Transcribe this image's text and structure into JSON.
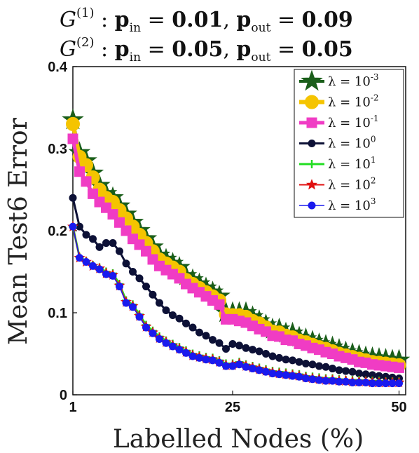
{
  "chart_data": {
    "type": "line",
    "title_lines": [
      "G(1) : pin = 0.01,  pout = 0.09",
      "G(2) : pin = 0.05,  pout = 0.05"
    ],
    "xlabel": "Labelled Nodes (%)",
    "ylabel": "Mean Test6 Error",
    "xlim": [
      1,
      51
    ],
    "ylim": [
      0,
      0.4
    ],
    "xticks": [
      "1",
      "25",
      "50"
    ],
    "yticks": [
      "0",
      "0.1",
      "0.2",
      "0.3",
      "0.4"
    ],
    "grid": false,
    "legend_position": "top-right",
    "x": [
      1,
      2,
      3,
      4,
      5,
      6,
      7,
      8,
      9,
      10,
      11,
      12,
      13,
      14,
      15,
      16,
      17,
      18,
      19,
      20,
      21,
      22,
      23,
      24,
      25,
      26,
      27,
      28,
      29,
      30,
      31,
      32,
      33,
      34,
      35,
      36,
      37,
      38,
      39,
      40,
      41,
      42,
      43,
      44,
      45,
      46,
      47,
      48,
      49,
      50
    ],
    "series": [
      {
        "name": "λ = 10^-3",
        "color": "#1a5e1a",
        "marker": "star-large",
        "values": [
          0.335,
          0.295,
          0.285,
          0.27,
          0.255,
          0.245,
          0.24,
          0.23,
          0.22,
          0.21,
          0.2,
          0.19,
          0.18,
          0.17,
          0.165,
          0.16,
          0.155,
          0.145,
          0.14,
          0.135,
          0.13,
          0.125,
          0.12,
          0.1,
          0.1,
          0.1,
          0.1,
          0.095,
          0.09,
          0.085,
          0.08,
          0.08,
          0.075,
          0.075,
          0.07,
          0.068,
          0.065,
          0.062,
          0.06,
          0.058,
          0.055,
          0.052,
          0.05,
          0.048,
          0.046,
          0.045,
          0.044,
          0.043,
          0.042,
          0.042
        ]
      },
      {
        "name": "λ = 10^-2",
        "color": "#f5c400",
        "marker": "circle-large",
        "values": [
          0.33,
          0.29,
          0.28,
          0.265,
          0.25,
          0.24,
          0.235,
          0.225,
          0.215,
          0.205,
          0.195,
          0.185,
          0.175,
          0.165,
          0.16,
          0.155,
          0.15,
          0.14,
          0.135,
          0.13,
          0.125,
          0.12,
          0.115,
          0.098,
          0.097,
          0.097,
          0.095,
          0.09,
          0.087,
          0.082,
          0.077,
          0.076,
          0.072,
          0.07,
          0.066,
          0.064,
          0.061,
          0.058,
          0.056,
          0.053,
          0.05,
          0.048,
          0.046,
          0.044,
          0.042,
          0.04,
          0.039,
          0.038,
          0.037,
          0.036
        ]
      },
      {
        "name": "λ = 10^-1",
        "color": "#f03cc4",
        "marker": "square",
        "values": [
          0.312,
          0.272,
          0.26,
          0.245,
          0.235,
          0.228,
          0.22,
          0.21,
          0.2,
          0.19,
          0.183,
          0.175,
          0.165,
          0.157,
          0.152,
          0.147,
          0.142,
          0.135,
          0.13,
          0.125,
          0.12,
          0.115,
          0.11,
          0.092,
          0.092,
          0.09,
          0.088,
          0.084,
          0.08,
          0.077,
          0.072,
          0.071,
          0.067,
          0.066,
          0.062,
          0.06,
          0.057,
          0.055,
          0.052,
          0.05,
          0.047,
          0.045,
          0.043,
          0.04,
          0.039,
          0.037,
          0.036,
          0.035,
          0.034,
          0.033
        ]
      },
      {
        "name": "λ = 10^0",
        "color": "#0d1136",
        "marker": "circle",
        "values": [
          0.24,
          0.205,
          0.195,
          0.19,
          0.18,
          0.185,
          0.185,
          0.175,
          0.16,
          0.15,
          0.142,
          0.132,
          0.122,
          0.112,
          0.103,
          0.097,
          0.093,
          0.087,
          0.082,
          0.076,
          0.072,
          0.067,
          0.063,
          0.056,
          0.062,
          0.06,
          0.057,
          0.055,
          0.053,
          0.05,
          0.047,
          0.045,
          0.043,
          0.042,
          0.04,
          0.038,
          0.037,
          0.035,
          0.034,
          0.032,
          0.03,
          0.029,
          0.028,
          0.026,
          0.025,
          0.024,
          0.023,
          0.022,
          0.021,
          0.02
        ]
      },
      {
        "name": "λ = 10^1",
        "color": "#22dd22",
        "marker": "plus",
        "values": [
          0.205,
          0.168,
          0.163,
          0.158,
          0.155,
          0.15,
          0.148,
          0.135,
          0.115,
          0.11,
          0.098,
          0.085,
          0.078,
          0.071,
          0.066,
          0.062,
          0.058,
          0.054,
          0.05,
          0.048,
          0.046,
          0.045,
          0.042,
          0.038,
          0.038,
          0.04,
          0.037,
          0.035,
          0.033,
          0.031,
          0.029,
          0.028,
          0.027,
          0.026,
          0.025,
          0.023,
          0.022,
          0.021,
          0.02,
          0.02,
          0.019,
          0.018,
          0.018,
          0.018,
          0.017,
          0.017,
          0.017,
          0.016,
          0.016,
          0.016
        ]
      },
      {
        "name": "λ = 10^2",
        "color": "#e01010",
        "marker": "star",
        "values": [
          0.205,
          0.167,
          0.162,
          0.157,
          0.154,
          0.148,
          0.146,
          0.133,
          0.113,
          0.108,
          0.096,
          0.083,
          0.076,
          0.069,
          0.064,
          0.06,
          0.056,
          0.052,
          0.048,
          0.046,
          0.044,
          0.043,
          0.04,
          0.036,
          0.036,
          0.038,
          0.035,
          0.033,
          0.031,
          0.029,
          0.027,
          0.026,
          0.025,
          0.024,
          0.023,
          0.021,
          0.02,
          0.019,
          0.018,
          0.018,
          0.017,
          0.017,
          0.016,
          0.016,
          0.016,
          0.015,
          0.015,
          0.015,
          0.015,
          0.015
        ]
      },
      {
        "name": "λ = 10^3",
        "color": "#1a1aee",
        "marker": "circle",
        "values": [
          0.205,
          0.167,
          0.162,
          0.157,
          0.153,
          0.147,
          0.145,
          0.132,
          0.112,
          0.107,
          0.095,
          0.082,
          0.075,
          0.068,
          0.063,
          0.059,
          0.055,
          0.051,
          0.047,
          0.045,
          0.043,
          0.042,
          0.039,
          0.035,
          0.035,
          0.037,
          0.034,
          0.032,
          0.03,
          0.028,
          0.026,
          0.025,
          0.024,
          0.023,
          0.022,
          0.02,
          0.019,
          0.018,
          0.017,
          0.017,
          0.016,
          0.016,
          0.015,
          0.015,
          0.015,
          0.014,
          0.014,
          0.014,
          0.014,
          0.014
        ]
      }
    ]
  }
}
